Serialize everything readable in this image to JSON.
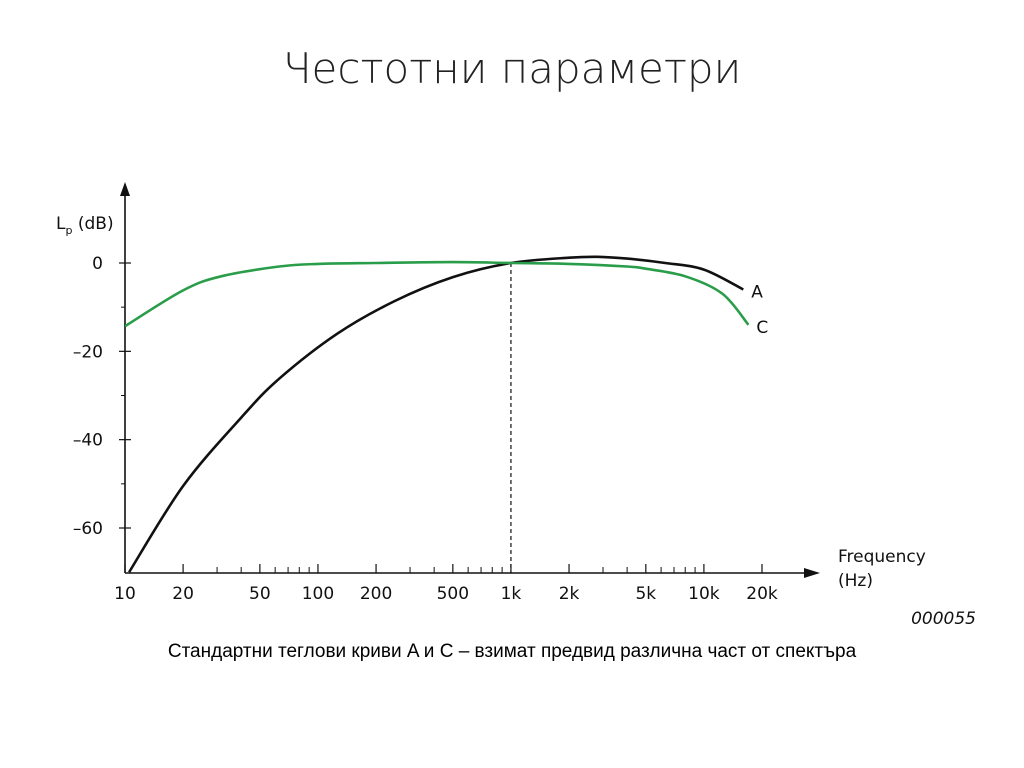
{
  "slide": {
    "title": "Честотни параметри",
    "caption": "Стандартни теглови криви A и C – взимат предвид различна част от спектъра",
    "figure_id": "000055"
  },
  "chart_data": {
    "type": "line",
    "x_scale": "log",
    "xlabel": "Frequency\n(Hz)",
    "ylabel_main": "L",
    "ylabel_sub": "p",
    "ylabel_unit": " (dB)",
    "xlim": [
      10,
      20000
    ],
    "ylim": [
      -70,
      5
    ],
    "x_ticks": [
      {
        "value": 10,
        "label": "10"
      },
      {
        "value": 20,
        "label": "20"
      },
      {
        "value": 50,
        "label": "50"
      },
      {
        "value": 100,
        "label": "100"
      },
      {
        "value": 200,
        "label": "200"
      },
      {
        "value": 500,
        "label": "500"
      },
      {
        "value": 1000,
        "label": "1k"
      },
      {
        "value": 2000,
        "label": "2k"
      },
      {
        "value": 5000,
        "label": "5k"
      },
      {
        "value": 10000,
        "label": "10k"
      },
      {
        "value": 20000,
        "label": "20k"
      }
    ],
    "y_ticks": [
      {
        "value": 0,
        "label": "0"
      },
      {
        "value": -20,
        "label": "–20"
      },
      {
        "value": -40,
        "label": "–40"
      },
      {
        "value": -60,
        "label": "–60"
      }
    ],
    "y_minor_ticks": [
      -10,
      -30,
      -50
    ],
    "reference_line_x": 1000,
    "series": [
      {
        "name": "A",
        "color": "#111111",
        "x": [
          10.5,
          20,
          40,
          63,
          125,
          250,
          500,
          1000,
          2000,
          2800,
          4000,
          6300,
          10000,
          16000
        ],
        "y": [
          -70,
          -50.5,
          -35,
          -26.2,
          -16.1,
          -8.6,
          -3.2,
          0,
          1.2,
          1.4,
          1.0,
          0,
          -1.5,
          -6
        ]
      },
      {
        "name": "C",
        "color": "#2a9d4a",
        "x": [
          10,
          20,
          31.5,
          63,
          100,
          200,
          500,
          1000,
          2000,
          4000,
          5000,
          8000,
          12500,
          17000
        ],
        "y": [
          -14.3,
          -6.2,
          -3,
          -0.8,
          -0.2,
          0,
          0.2,
          0,
          -0.2,
          -0.8,
          -1.3,
          -3,
          -7,
          -14
        ]
      }
    ]
  }
}
